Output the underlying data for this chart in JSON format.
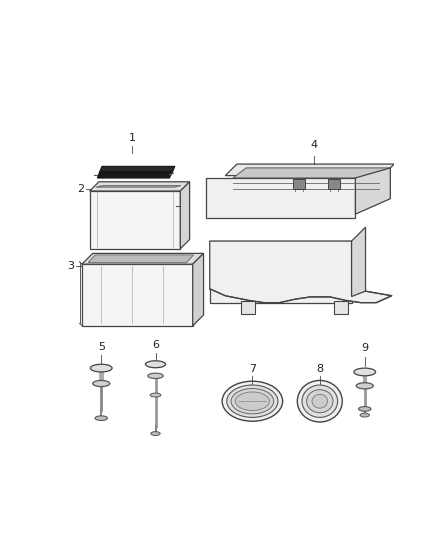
{
  "background_color": "#ffffff",
  "line_color": "#555555",
  "label_color": "#222222",
  "fig_width": 4.38,
  "fig_height": 5.33,
  "dpi": 100
}
